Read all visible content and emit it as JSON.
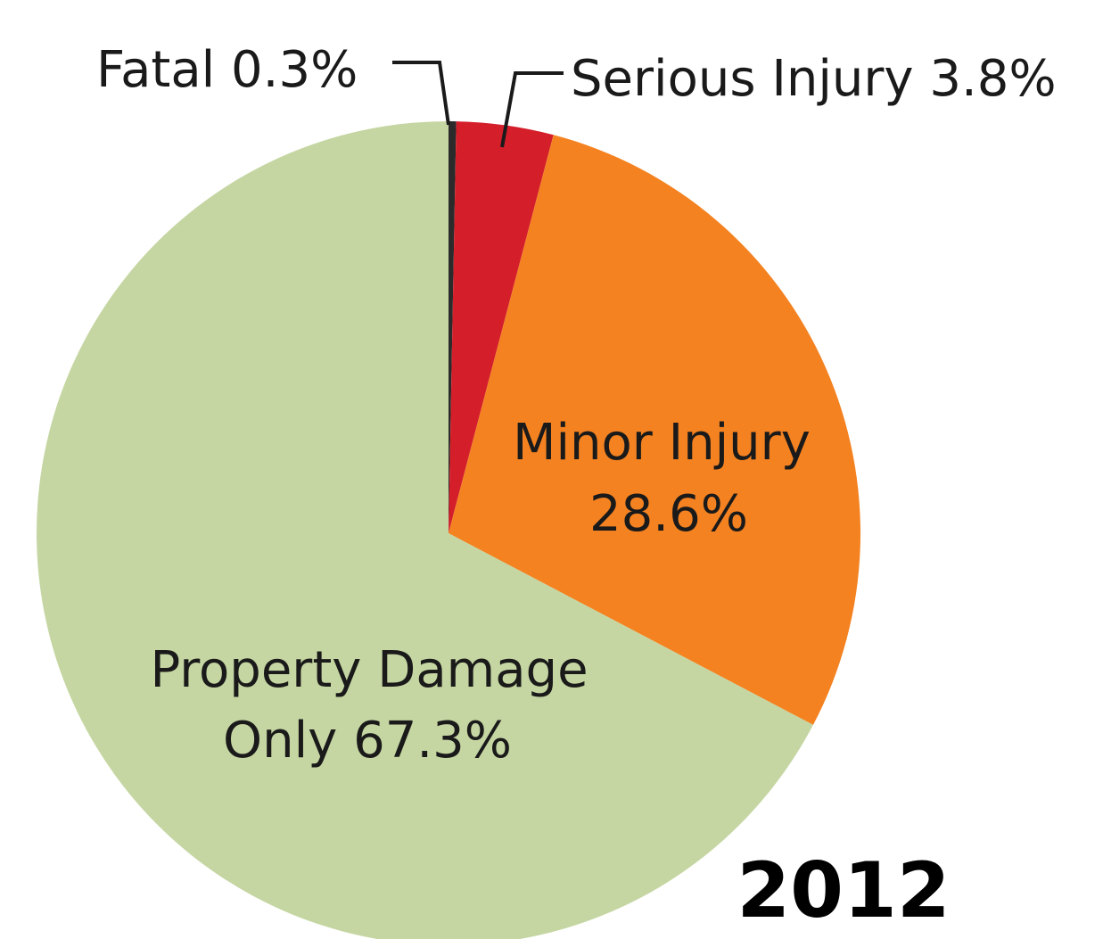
{
  "chart_data": {
    "type": "pie",
    "title": "2012",
    "slices": [
      {
        "label": "Fatal",
        "value": 0.3,
        "display": "Fatal 0.3%",
        "color": "#2b2b2b"
      },
      {
        "label": "Serious Injury",
        "value": 3.8,
        "display": "Serious Injury 3.8%",
        "color": "#d41f2b"
      },
      {
        "label": "Minor Injury",
        "value": 28.6,
        "display_lines": [
          "Minor Injury",
          "28.6%"
        ],
        "color": "#f48221"
      },
      {
        "label": "Property Damage Only",
        "value": 67.3,
        "display_lines": [
          "Property Damage",
          "Only 67.3%"
        ],
        "color": "#c5d6a2"
      }
    ],
    "start_angle": "12 o'clock",
    "direction": "clockwise",
    "legend": "none"
  }
}
